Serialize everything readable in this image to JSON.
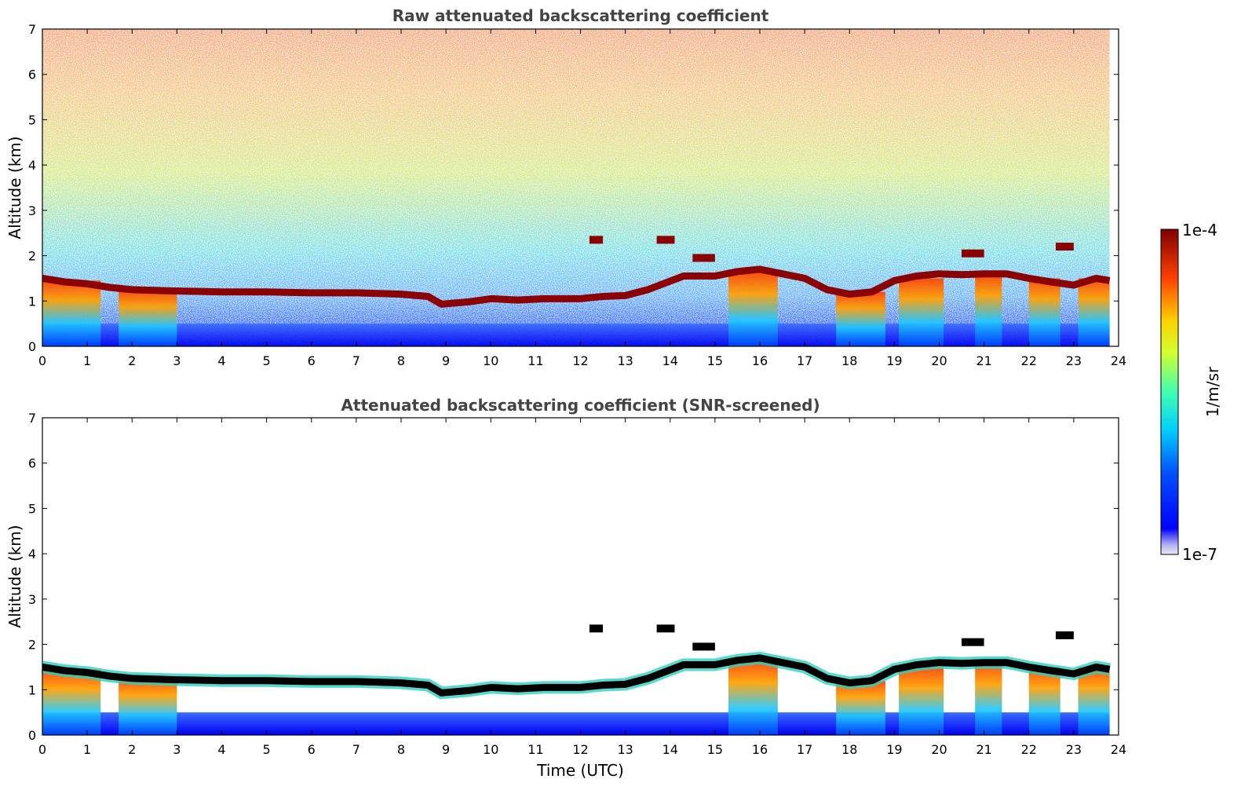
{
  "colors": {
    "title": "#444444",
    "axis": "#000000",
    "cloud_core": "#8b0000",
    "screened_core": "#000000"
  },
  "colorbar": {
    "max_label": "1e-4",
    "min_label": "1e-7",
    "unit_label": "1/m/sr",
    "colormap": "jet"
  },
  "chart_data": [
    {
      "type": "heatmap",
      "title": "Raw attenuated backscattering coefficient",
      "xlabel": "",
      "ylabel": "Altitude (km)",
      "xlim": [
        0,
        24
      ],
      "ylim": [
        0,
        7
      ],
      "xticks": [
        "0",
        "1",
        "2",
        "3",
        "4",
        "5",
        "6",
        "7",
        "8",
        "9",
        "10",
        "11",
        "12",
        "13",
        "14",
        "15",
        "16",
        "17",
        "18",
        "19",
        "20",
        "21",
        "22",
        "23",
        "24"
      ],
      "yticks": [
        "0",
        "1",
        "2",
        "3",
        "4",
        "5",
        "6",
        "7"
      ],
      "data_end_time": 23.8,
      "noise": "speckled background noise increasing with altitude",
      "cloud_base_layer": [
        [
          0.0,
          1.5
        ],
        [
          0.5,
          1.42
        ],
        [
          1.0,
          1.38
        ],
        [
          1.5,
          1.3
        ],
        [
          2.0,
          1.25
        ],
        [
          3.0,
          1.22
        ],
        [
          4.0,
          1.2
        ],
        [
          5.0,
          1.2
        ],
        [
          6.0,
          1.18
        ],
        [
          7.0,
          1.18
        ],
        [
          8.0,
          1.15
        ],
        [
          8.6,
          1.1
        ],
        [
          8.9,
          0.93
        ],
        [
          9.5,
          0.98
        ],
        [
          10.0,
          1.05
        ],
        [
          10.6,
          1.02
        ],
        [
          11.2,
          1.05
        ],
        [
          12.0,
          1.05
        ],
        [
          12.5,
          1.1
        ],
        [
          13.0,
          1.12
        ],
        [
          13.5,
          1.25
        ],
        [
          13.9,
          1.4
        ],
        [
          14.3,
          1.55
        ],
        [
          15.0,
          1.55
        ],
        [
          15.5,
          1.65
        ],
        [
          16.0,
          1.7
        ],
        [
          16.5,
          1.6
        ],
        [
          17.0,
          1.5
        ],
        [
          17.5,
          1.25
        ],
        [
          18.0,
          1.15
        ],
        [
          18.5,
          1.2
        ],
        [
          19.0,
          1.45
        ],
        [
          19.5,
          1.55
        ],
        [
          20.0,
          1.6
        ],
        [
          20.5,
          1.58
        ],
        [
          21.0,
          1.6
        ],
        [
          21.5,
          1.6
        ],
        [
          22.0,
          1.5
        ],
        [
          22.5,
          1.42
        ],
        [
          23.0,
          1.35
        ],
        [
          23.5,
          1.5
        ],
        [
          23.8,
          1.45
        ]
      ],
      "elevated_cloud_patches": [
        [
          12.2,
          12.5,
          2.35
        ],
        [
          13.7,
          14.1,
          2.35
        ],
        [
          14.5,
          15.0,
          1.95
        ],
        [
          20.5,
          21.0,
          2.05
        ],
        [
          22.6,
          23.0,
          2.2
        ]
      ],
      "precipitation_fallstreaks": [
        [
          0.0,
          1.3,
          1.45
        ],
        [
          1.7,
          3.0,
          1.25
        ],
        [
          15.3,
          16.4,
          1.65
        ],
        [
          17.7,
          18.8,
          1.2
        ],
        [
          19.1,
          20.1,
          1.5
        ],
        [
          20.8,
          21.4,
          1.6
        ],
        [
          22.0,
          22.7,
          1.5
        ],
        [
          23.1,
          23.8,
          1.5
        ]
      ],
      "aerosol_boundary_layer_top_km": 0.5
    },
    {
      "type": "heatmap",
      "title": "Attenuated backscattering coefficient (SNR-screened)",
      "xlabel": "Time (UTC)",
      "ylabel": "Altitude (km)",
      "xlim": [
        0,
        24
      ],
      "ylim": [
        0,
        7
      ],
      "xticks": [
        "0",
        "1",
        "2",
        "3",
        "4",
        "5",
        "6",
        "7",
        "8",
        "9",
        "10",
        "11",
        "12",
        "13",
        "14",
        "15",
        "16",
        "17",
        "18",
        "19",
        "20",
        "21",
        "22",
        "23",
        "24"
      ],
      "yticks": [
        "0",
        "1",
        "2",
        "3",
        "4",
        "5",
        "6",
        "7"
      ],
      "data_end_time": 23.8,
      "screening": "pixels below the SNR threshold are blank (white); the cloud-layer core is drawn in black",
      "same_features_as": "Raw attenuated backscattering coefficient"
    }
  ]
}
